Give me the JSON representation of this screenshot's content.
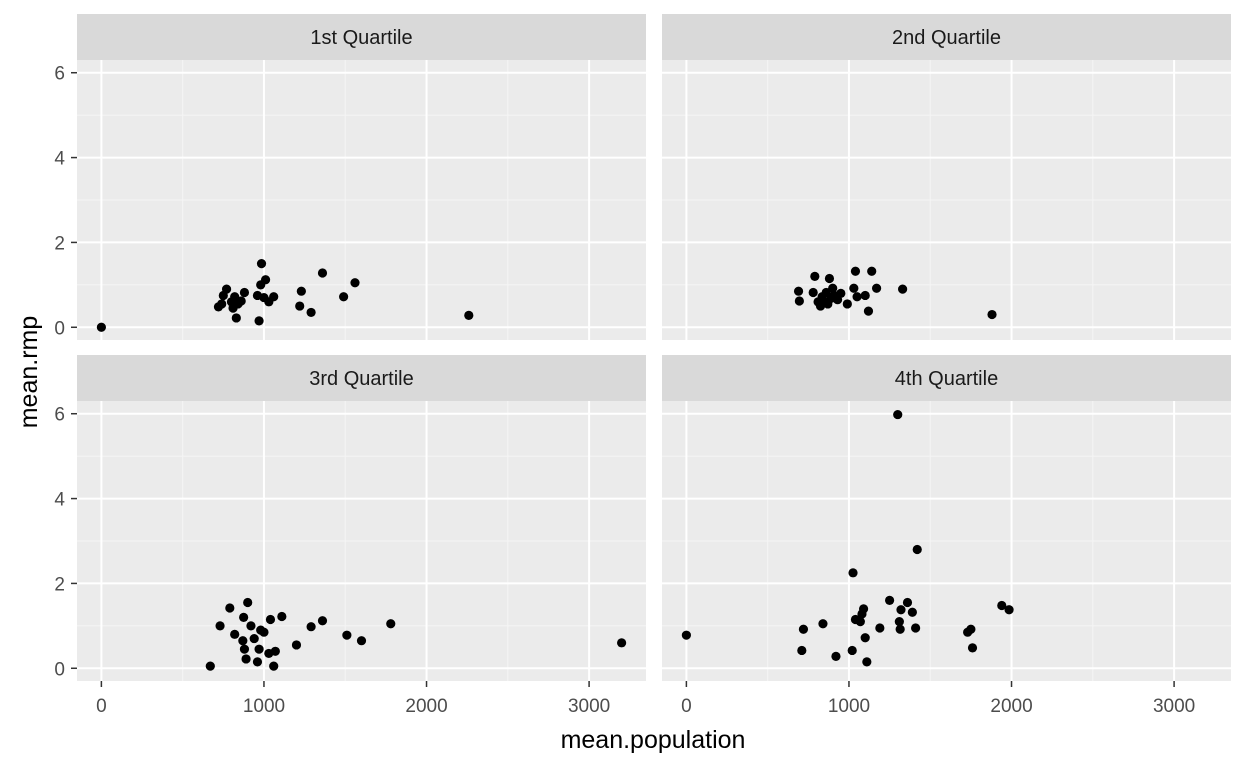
{
  "colors": {
    "panel_background": "#EBEBEB",
    "strip_background": "#D9D9D9",
    "grid_major": "#FFFFFF",
    "grid_minor": "#F5F5F5",
    "point": "#000000",
    "tick_text": "#4D4D4D",
    "strip_text": "#1A1A1A"
  },
  "chart_data": {
    "type": "scatter",
    "facet_layout": "2x2",
    "xlabel": "mean.population",
    "ylabel": "mean.rmp",
    "xlim": [
      -150,
      3350
    ],
    "ylim": [
      -0.3,
      6.3
    ],
    "xticks": [
      0,
      1000,
      2000,
      3000
    ],
    "yticks": [
      0,
      2,
      4,
      6
    ],
    "grid": true,
    "panels": [
      {
        "title": "1st Quartile",
        "points": [
          {
            "x": 0,
            "y": 0.0
          },
          {
            "x": 720,
            "y": 0.48
          },
          {
            "x": 740,
            "y": 0.55
          },
          {
            "x": 750,
            "y": 0.75
          },
          {
            "x": 770,
            "y": 0.9
          },
          {
            "x": 800,
            "y": 0.6
          },
          {
            "x": 810,
            "y": 0.45
          },
          {
            "x": 820,
            "y": 0.72
          },
          {
            "x": 830,
            "y": 0.22
          },
          {
            "x": 840,
            "y": 0.55
          },
          {
            "x": 860,
            "y": 0.62
          },
          {
            "x": 880,
            "y": 0.82
          },
          {
            "x": 960,
            "y": 0.75
          },
          {
            "x": 970,
            "y": 0.15
          },
          {
            "x": 980,
            "y": 1.0
          },
          {
            "x": 985,
            "y": 1.5
          },
          {
            "x": 1000,
            "y": 0.7
          },
          {
            "x": 1010,
            "y": 1.12
          },
          {
            "x": 1030,
            "y": 0.6
          },
          {
            "x": 1060,
            "y": 0.72
          },
          {
            "x": 1220,
            "y": 0.5
          },
          {
            "x": 1230,
            "y": 0.85
          },
          {
            "x": 1290,
            "y": 0.35
          },
          {
            "x": 1360,
            "y": 1.28
          },
          {
            "x": 1490,
            "y": 0.72
          },
          {
            "x": 1560,
            "y": 1.05
          },
          {
            "x": 2260,
            "y": 0.28
          }
        ]
      },
      {
        "title": "2nd Quartile",
        "points": [
          {
            "x": 690,
            "y": 0.85
          },
          {
            "x": 695,
            "y": 0.62
          },
          {
            "x": 780,
            "y": 0.82
          },
          {
            "x": 790,
            "y": 1.2
          },
          {
            "x": 810,
            "y": 0.6
          },
          {
            "x": 825,
            "y": 0.5
          },
          {
            "x": 835,
            "y": 0.72
          },
          {
            "x": 850,
            "y": 0.6
          },
          {
            "x": 860,
            "y": 0.82
          },
          {
            "x": 870,
            "y": 0.55
          },
          {
            "x": 880,
            "y": 1.15
          },
          {
            "x": 890,
            "y": 0.68
          },
          {
            "x": 900,
            "y": 0.92
          },
          {
            "x": 910,
            "y": 0.75
          },
          {
            "x": 930,
            "y": 0.65
          },
          {
            "x": 950,
            "y": 0.8
          },
          {
            "x": 990,
            "y": 0.55
          },
          {
            "x": 1030,
            "y": 0.92
          },
          {
            "x": 1040,
            "y": 1.32
          },
          {
            "x": 1050,
            "y": 0.72
          },
          {
            "x": 1100,
            "y": 0.75
          },
          {
            "x": 1120,
            "y": 0.38
          },
          {
            "x": 1140,
            "y": 1.32
          },
          {
            "x": 1170,
            "y": 0.92
          },
          {
            "x": 1330,
            "y": 0.9
          },
          {
            "x": 1880,
            "y": 0.3
          }
        ]
      },
      {
        "title": "3rd Quartile",
        "points": [
          {
            "x": 670,
            "y": 0.05
          },
          {
            "x": 730,
            "y": 1.0
          },
          {
            "x": 790,
            "y": 1.42
          },
          {
            "x": 820,
            "y": 0.8
          },
          {
            "x": 870,
            "y": 0.65
          },
          {
            "x": 875,
            "y": 1.2
          },
          {
            "x": 880,
            "y": 0.45
          },
          {
            "x": 890,
            "y": 0.22
          },
          {
            "x": 900,
            "y": 1.55
          },
          {
            "x": 920,
            "y": 1.0
          },
          {
            "x": 940,
            "y": 0.7
          },
          {
            "x": 960,
            "y": 0.15
          },
          {
            "x": 970,
            "y": 0.45
          },
          {
            "x": 980,
            "y": 0.9
          },
          {
            "x": 1000,
            "y": 0.85
          },
          {
            "x": 1030,
            "y": 0.35
          },
          {
            "x": 1040,
            "y": 1.15
          },
          {
            "x": 1060,
            "y": 0.05
          },
          {
            "x": 1070,
            "y": 0.4
          },
          {
            "x": 1110,
            "y": 1.22
          },
          {
            "x": 1200,
            "y": 0.55
          },
          {
            "x": 1290,
            "y": 0.98
          },
          {
            "x": 1360,
            "y": 1.12
          },
          {
            "x": 1510,
            "y": 0.78
          },
          {
            "x": 1600,
            "y": 0.65
          },
          {
            "x": 1780,
            "y": 1.05
          },
          {
            "x": 3200,
            "y": 0.6
          }
        ]
      },
      {
        "title": "4th Quartile",
        "points": [
          {
            "x": 0,
            "y": 0.78
          },
          {
            "x": 710,
            "y": 0.42
          },
          {
            "x": 720,
            "y": 0.92
          },
          {
            "x": 840,
            "y": 1.05
          },
          {
            "x": 920,
            "y": 0.28
          },
          {
            "x": 1020,
            "y": 0.42
          },
          {
            "x": 1025,
            "y": 2.25
          },
          {
            "x": 1040,
            "y": 1.15
          },
          {
            "x": 1070,
            "y": 1.1
          },
          {
            "x": 1080,
            "y": 1.28
          },
          {
            "x": 1090,
            "y": 1.4
          },
          {
            "x": 1100,
            "y": 0.72
          },
          {
            "x": 1110,
            "y": 0.15
          },
          {
            "x": 1190,
            "y": 0.95
          },
          {
            "x": 1250,
            "y": 1.6
          },
          {
            "x": 1300,
            "y": 5.98
          },
          {
            "x": 1310,
            "y": 1.1
          },
          {
            "x": 1315,
            "y": 0.92
          },
          {
            "x": 1320,
            "y": 1.38
          },
          {
            "x": 1360,
            "y": 1.55
          },
          {
            "x": 1390,
            "y": 1.32
          },
          {
            "x": 1410,
            "y": 0.95
          },
          {
            "x": 1420,
            "y": 2.8
          },
          {
            "x": 1730,
            "y": 0.85
          },
          {
            "x": 1750,
            "y": 0.92
          },
          {
            "x": 1760,
            "y": 0.48
          },
          {
            "x": 1940,
            "y": 1.48
          },
          {
            "x": 1985,
            "y": 1.38
          }
        ]
      }
    ]
  }
}
